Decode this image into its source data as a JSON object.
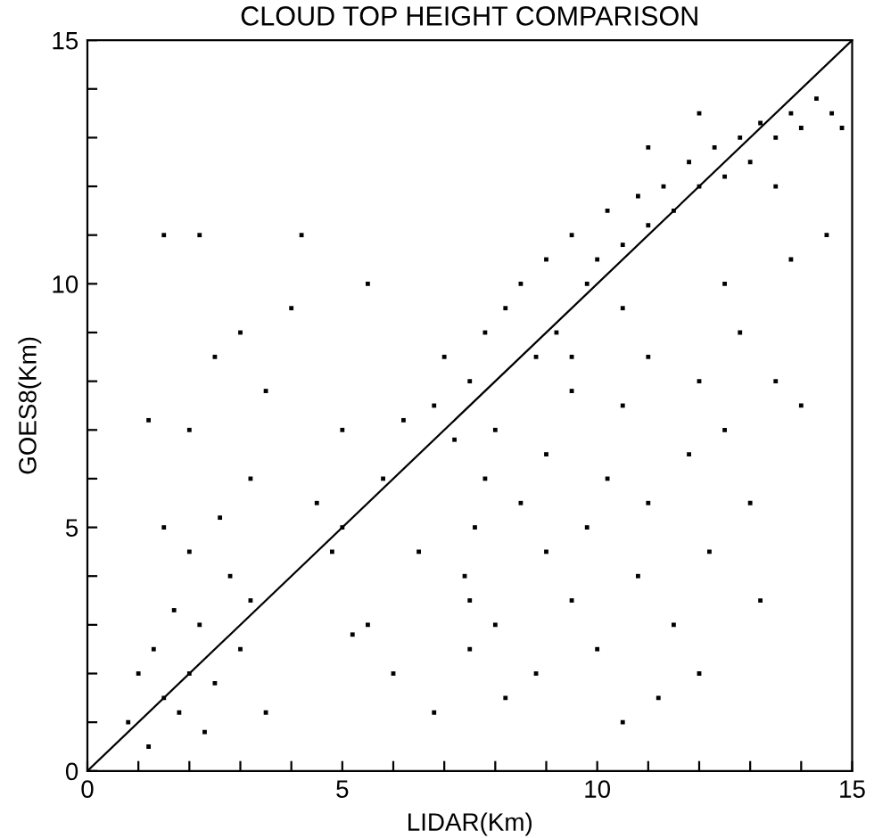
{
  "chart_data": {
    "type": "scatter",
    "title": "CLOUD TOP HEIGHT COMPARISON",
    "xlabel": "LIDAR(Km)",
    "ylabel": "GOES8(Km)",
    "xlim": [
      0,
      15
    ],
    "ylim": [
      0,
      15
    ],
    "xticks": [
      0,
      {
        "value": 1,
        "label": null
      },
      {
        "value": 2,
        "label": null
      },
      {
        "value": 3,
        "label": null
      },
      {
        "value": 4,
        "label": null
      },
      5,
      {
        "value": 6,
        "label": null
      },
      {
        "value": 7,
        "label": null
      },
      {
        "value": 8,
        "label": null
      },
      {
        "value": 9,
        "label": null
      },
      10,
      {
        "value": 11,
        "label": null
      },
      {
        "value": 12,
        "label": null
      },
      {
        "value": 13,
        "label": null
      },
      {
        "value": 14,
        "label": null
      },
      15
    ],
    "yticks": [
      0,
      {
        "value": 1,
        "label": null
      },
      {
        "value": 2,
        "label": null
      },
      {
        "value": 3,
        "label": null
      },
      {
        "value": 4,
        "label": null
      },
      5,
      {
        "value": 6,
        "label": null
      },
      {
        "value": 7,
        "label": null
      },
      {
        "value": 8,
        "label": null
      },
      {
        "value": 9,
        "label": null
      },
      10,
      {
        "value": 11,
        "label": null
      },
      {
        "value": 12,
        "label": null
      },
      {
        "value": 13,
        "label": null
      },
      {
        "value": 14,
        "label": null
      },
      15
    ],
    "grid": false,
    "marker": "square",
    "series": [
      {
        "color": "#000000",
        "x": [
          0.8,
          1.2,
          1.5,
          1.8,
          2.0,
          1.3,
          2.2,
          1.7,
          2.5,
          3.0,
          2.8,
          2.0,
          1.5,
          3.2,
          2.3,
          1.0,
          3.5,
          2.6,
          1.5,
          2.2,
          3.0,
          2.5,
          1.2,
          2.0,
          3.5,
          4.2,
          4.0,
          3.2,
          4.5,
          5.0,
          5.5,
          4.8,
          5.5,
          6.0,
          5.2,
          5.0,
          5.8,
          6.2,
          6.8,
          7.0,
          7.5,
          7.8,
          8.0,
          8.2,
          8.5,
          8.8,
          9.0,
          9.2,
          9.5,
          9.8,
          10.0,
          10.2,
          10.5,
          10.8,
          11.0,
          11.3,
          11.5,
          11.8,
          12.0,
          12.3,
          12.5,
          12.8,
          13.0,
          13.2,
          13.5,
          13.8,
          14.0,
          14.3,
          14.6,
          14.8,
          12.0,
          11.0,
          13.5,
          10.5,
          9.5,
          7.5,
          7.4,
          7.6,
          7.5,
          7.8,
          8.0,
          8.5,
          8.2,
          8.8,
          9.0,
          9.0,
          9.5,
          9.8,
          10.0,
          10.2,
          10.5,
          10.8,
          11.0,
          11.2,
          11.5,
          11.8,
          12.0,
          12.2,
          12.5,
          12.8,
          13.0,
          13.5,
          13.8,
          14.0,
          14.5,
          11.0,
          9.5,
          12.5,
          6.5,
          6.8,
          10.5,
          12.0,
          13.2,
          7.2
        ],
        "values": [
          1.0,
          0.5,
          1.5,
          1.2,
          2.0,
          2.5,
          3.0,
          3.3,
          1.8,
          2.5,
          4.0,
          4.5,
          5.0,
          3.5,
          0.8,
          2.0,
          1.2,
          5.2,
          11.0,
          11.0,
          9.0,
          8.5,
          7.2,
          7.0,
          7.8,
          11.0,
          9.5,
          6.0,
          5.5,
          7.0,
          10.0,
          4.5,
          3.0,
          2.0,
          2.8,
          5.0,
          6.0,
          7.2,
          7.5,
          8.5,
          8.0,
          9.0,
          7.0,
          9.5,
          10.0,
          8.5,
          10.5,
          9.0,
          11.0,
          10.0,
          10.5,
          11.5,
          10.8,
          11.8,
          11.2,
          12.0,
          11.5,
          12.5,
          12.0,
          12.8,
          12.2,
          13.0,
          12.5,
          13.3,
          13.0,
          13.5,
          13.2,
          13.8,
          13.5,
          13.2,
          13.5,
          12.8,
          12.0,
          9.5,
          7.8,
          3.5,
          4.0,
          5.0,
          2.5,
          6.0,
          3.0,
          5.5,
          1.5,
          2.0,
          4.5,
          6.5,
          3.5,
          5.0,
          2.5,
          6.0,
          7.5,
          4.0,
          5.5,
          1.5,
          3.0,
          6.5,
          8.0,
          4.5,
          7.0,
          9.0,
          5.5,
          8.0,
          10.5,
          7.5,
          11.0,
          8.5,
          8.5,
          10.0,
          4.5,
          1.2,
          1.0,
          2.0,
          3.5,
          6.8
        ]
      },
      {
        "type": "line",
        "color": "#000000",
        "marker": "none",
        "line_style": "solid",
        "x": [
          0,
          15
        ],
        "values": [
          0,
          15
        ]
      }
    ]
  }
}
